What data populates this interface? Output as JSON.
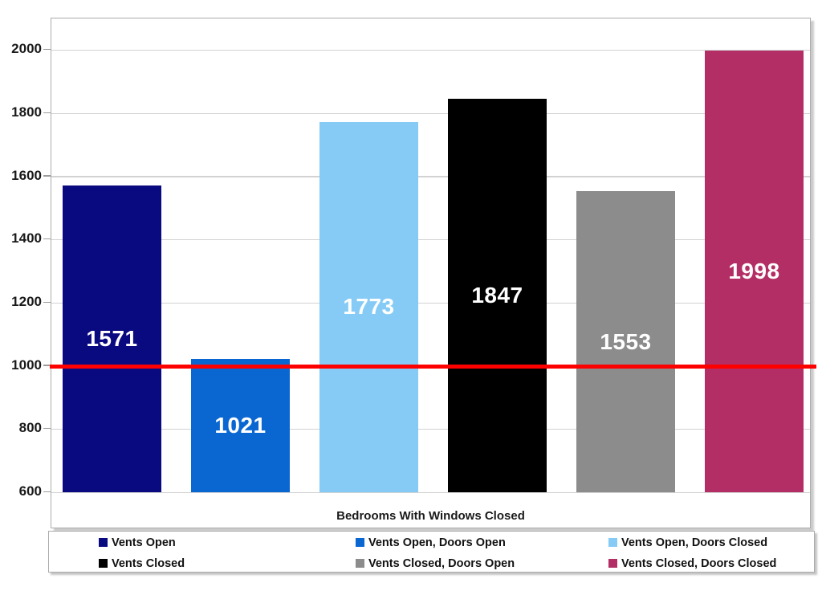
{
  "chart_data": {
    "type": "bar",
    "title": "",
    "xlabel": "Bedrooms With Windows Closed",
    "ylabel": "",
    "ylim": [
      600,
      2100
    ],
    "yticks": [
      600,
      800,
      1000,
      1200,
      1400,
      1600,
      1800,
      2000
    ],
    "grid": true,
    "legend_position": "bottom",
    "categories": [
      "Vents Open",
      "Vents Open, Doors Open",
      "Vents Open, Doors Closed",
      "Vents Closed",
      "Vents Closed, Doors Open",
      "Vents Closed, Doors Closed"
    ],
    "values": [
      1571,
      1021,
      1773,
      1847,
      1553,
      1998
    ],
    "colors": [
      "#0a0a80",
      "#0a67d2",
      "#85cbf5",
      "#000000",
      "#8c8c8c",
      "#b32e64"
    ],
    "ref_line": {
      "value": 1000,
      "color": "#ff0000"
    },
    "legend": {
      "entries": [
        {
          "label": "Vents Open",
          "color": "#0a0a80"
        },
        {
          "label": "Vents Open, Doors Open",
          "color": "#0a67d2"
        },
        {
          "label": "Vents Open, Doors Closed",
          "color": "#85cbf5"
        },
        {
          "label": "Vents Closed",
          "color": "#000000"
        },
        {
          "label": "Vents Closed, Doors Open",
          "color": "#8c8c8c"
        },
        {
          "label": "Vents Closed, Doors Closed",
          "color": "#b32e64"
        }
      ]
    }
  }
}
